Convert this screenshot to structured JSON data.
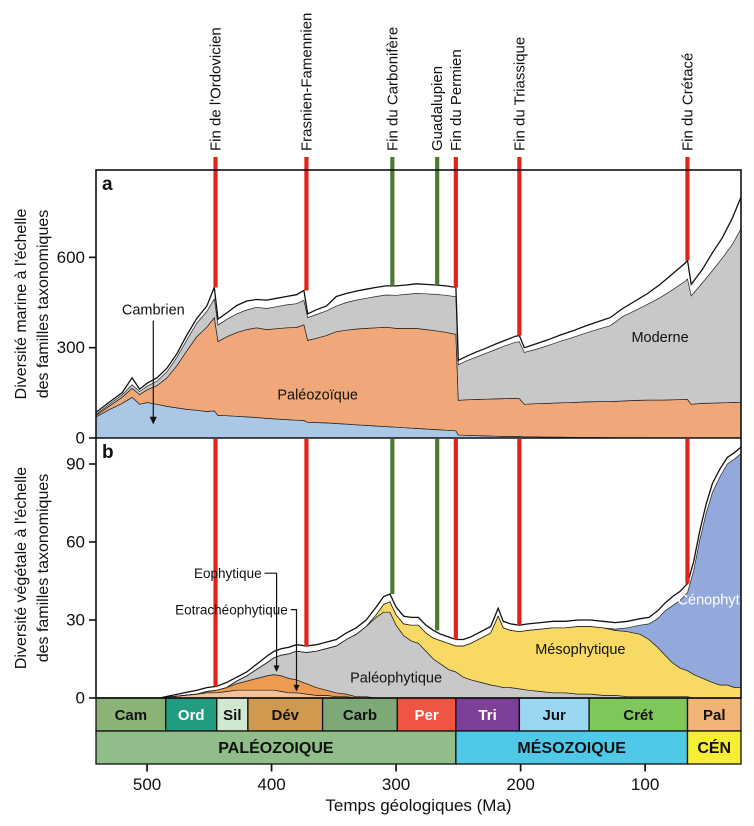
{
  "figure": {
    "xlabel": "Temps géologiques (Ma)",
    "panel_a_letter": "a",
    "panel_b_letter": "b",
    "ylabel_a_line1": "Diversité marine à l'échelle",
    "ylabel_a_line2": "des familles taxonomiques",
    "ylabel_b_line1": "Diversité végétale à l'échelle",
    "ylabel_b_line2": "des familles taxonomiques"
  },
  "events": [
    {
      "label": "Fin de l'Ordovicien",
      "ma": 445,
      "color": "#e3231a"
    },
    {
      "label": "Frasnien-Famennien",
      "ma": 372,
      "color": "#e3231a"
    },
    {
      "label": "Fin du Carbonifère",
      "ma": 303,
      "color": "#4e7a2e"
    },
    {
      "label": "Guadalupien",
      "ma": 267,
      "color": "#4e7a2e"
    },
    {
      "label": "Fin du Permien",
      "ma": 252,
      "color": "#e3231a"
    },
    {
      "label": "Fin du Triassique",
      "ma": 201,
      "color": "#e3231a"
    },
    {
      "label": "Fin du Crétacé",
      "ma": 66,
      "color": "#e3231a"
    }
  ],
  "chart_data": [
    {
      "id": "marine-diversity",
      "type": "area",
      "panel": "a",
      "y_ticks": [
        0,
        300,
        600
      ],
      "y_max": 890,
      "x_ma": [
        541,
        530,
        520,
        512,
        506,
        500,
        492,
        484,
        476,
        468,
        460,
        452,
        446,
        443,
        436,
        428,
        420,
        412,
        404,
        396,
        388,
        380,
        374,
        371,
        364,
        356,
        348,
        340,
        332,
        324,
        316,
        308,
        300,
        292,
        284,
        276,
        268,
        260,
        252,
        250,
        244,
        236,
        228,
        220,
        212,
        204,
        201,
        197,
        188,
        178,
        168,
        158,
        148,
        138,
        128,
        118,
        108,
        98,
        88,
        78,
        68,
        66,
        63,
        54,
        46,
        38,
        30,
        23
      ],
      "series": [
        {
          "name": "Cambrien",
          "color": "#aac7e6",
          "values": [
            70,
            95,
            115,
            135,
            112,
            118,
            112,
            105,
            100,
            95,
            92,
            88,
            90,
            75,
            74,
            72,
            70,
            68,
            65,
            63,
            61,
            59,
            58,
            52,
            51,
            50,
            48,
            46,
            44,
            42,
            40,
            38,
            36,
            34,
            32,
            30,
            28,
            26,
            24,
            10,
            9,
            8,
            7,
            6,
            5,
            5,
            5,
            4,
            4,
            3,
            3,
            2,
            2,
            2,
            1,
            1,
            1,
            1,
            0,
            0,
            0,
            0,
            0,
            0,
            0,
            0,
            0,
            0
          ]
        },
        {
          "name": "Paléozoïque",
          "color": "#f0a87a",
          "values": [
            5,
            12,
            20,
            30,
            32,
            42,
            62,
            95,
            140,
            195,
            245,
            280,
            310,
            245,
            262,
            278,
            290,
            298,
            295,
            300,
            305,
            308,
            318,
            272,
            280,
            290,
            305,
            312,
            318,
            322,
            326,
            330,
            328,
            330,
            332,
            330,
            328,
            325,
            320,
            115,
            118,
            120,
            122,
            124,
            126,
            127,
            126,
            108,
            110,
            112,
            114,
            116,
            118,
            119,
            120,
            122,
            124,
            125,
            126,
            127,
            128,
            128,
            112,
            115,
            116,
            117,
            118,
            119
          ]
        },
        {
          "name": "Moderne",
          "color": "#c8c8c8",
          "values": [
            3,
            6,
            8,
            12,
            10,
            12,
            15,
            20,
            28,
            36,
            45,
            52,
            62,
            55,
            58,
            62,
            65,
            68,
            70,
            73,
            76,
            79,
            81,
            76,
            79,
            82,
            85,
            92,
            96,
            100,
            104,
            107,
            110,
            113,
            116,
            119,
            121,
            123,
            125,
            118,
            128,
            140,
            152,
            164,
            176,
            186,
            188,
            172,
            180,
            192,
            204,
            216,
            228,
            240,
            252,
            280,
            298,
            318,
            340,
            365,
            392,
            400,
            360,
            400,
            440,
            480,
            525,
            575
          ]
        }
      ],
      "total": [
        85,
        120,
        150,
        200,
        162,
        182,
        200,
        232,
        280,
        342,
        398,
        438,
        500,
        395,
        415,
        440,
        455,
        460,
        458,
        464,
        470,
        476,
        490,
        412,
        426,
        438,
        470,
        480,
        488,
        494,
        500,
        505,
        505,
        508,
        512,
        510,
        508,
        505,
        500,
        258,
        270,
        285,
        298,
        312,
        325,
        338,
        340,
        300,
        312,
        326,
        342,
        356,
        372,
        386,
        400,
        430,
        455,
        480,
        510,
        545,
        580,
        590,
        510,
        560,
        615,
        665,
        730,
        800
      ],
      "labels": [
        {
          "text": "Cambrien",
          "ma": 495,
          "value": 410,
          "color": "#111111",
          "arrow_to": 45
        },
        {
          "text": "Paléozoïque",
          "ma": 363,
          "value": 128,
          "color": "#111111"
        },
        {
          "text": "Moderne",
          "ma": 88,
          "value": 318,
          "color": "#111111"
        }
      ]
    },
    {
      "id": "plant-diversity",
      "type": "area",
      "panel": "b",
      "y_ticks": [
        0,
        30,
        60,
        90
      ],
      "y_max": 100,
      "x_ma": [
        541,
        490,
        470,
        460,
        452,
        444,
        436,
        428,
        420,
        412,
        404,
        398,
        392,
        386,
        380,
        372,
        364,
        356,
        348,
        340,
        332,
        324,
        316,
        310,
        305,
        300,
        294,
        288,
        282,
        276,
        270,
        264,
        258,
        252,
        246,
        240,
        232,
        224,
        218,
        214,
        208,
        201,
        194,
        184,
        174,
        164,
        154,
        144,
        134,
        124,
        114,
        104,
        97,
        90,
        84,
        78,
        72,
        66,
        61,
        56,
        51,
        46,
        40,
        34,
        28,
        23
      ],
      "series": [
        {
          "name": "Eotrachéophytique",
          "color": "#f2c39b",
          "values": [
            0,
            0,
            1,
            1.5,
            2,
            2,
            2.5,
            3,
            3,
            3,
            3,
            3,
            2.5,
            2,
            2,
            1.5,
            1,
            1,
            0.5,
            0.5,
            0,
            0,
            0,
            0,
            0,
            0,
            0,
            0,
            0,
            0,
            0,
            0,
            0,
            0,
            0,
            0,
            0,
            0,
            0,
            0,
            0,
            0,
            0,
            0,
            0,
            0,
            0,
            0,
            0,
            0,
            0,
            0,
            0,
            0,
            0,
            0,
            0,
            0,
            0,
            0,
            0,
            0,
            0,
            0,
            0,
            0
          ]
        },
        {
          "name": "Eophytique",
          "color": "#ee9b52",
          "values": [
            0,
            0,
            0,
            0,
            0.5,
            1,
            1.5,
            2.5,
            3.5,
            4.5,
            5.5,
            6,
            6,
            5.5,
            5,
            4,
            3,
            2,
            1.5,
            1,
            0.5,
            0.5,
            0,
            0,
            0,
            0,
            0,
            0,
            0,
            0,
            0,
            0,
            0,
            0,
            0,
            0,
            0,
            0,
            0,
            0,
            0,
            0,
            0,
            0,
            0,
            0,
            0,
            0,
            0,
            0,
            0,
            0,
            0,
            0,
            0,
            0,
            0,
            0,
            0,
            0,
            0,
            0,
            0,
            0,
            0,
            0
          ]
        },
        {
          "name": "Paléophytique",
          "color": "#c8c8c8",
          "values": [
            0,
            0,
            0,
            0,
            0,
            0,
            0,
            1,
            2,
            3.5,
            5,
            6.5,
            8,
            9.5,
            11,
            12,
            14,
            16,
            18,
            21,
            24,
            27,
            31,
            33,
            33,
            28,
            24,
            22,
            21,
            18,
            15,
            13,
            11,
            10,
            8,
            7,
            6,
            5,
            4.5,
            4,
            4,
            3.5,
            3,
            2.5,
            2,
            2,
            1.5,
            1.5,
            1,
            1,
            0.5,
            0.5,
            0.5,
            0.5,
            0.5,
            0.5,
            0.5,
            0.5,
            0,
            0,
            0,
            0,
            0,
            0,
            0,
            0
          ]
        },
        {
          "name": "Mésophytique",
          "color": "#f8d964",
          "values": [
            0,
            0,
            0,
            0,
            0,
            0,
            0,
            0,
            0,
            0,
            0,
            0,
            0,
            0,
            0,
            0,
            0,
            0,
            0,
            0,
            0,
            0,
            1,
            3,
            4,
            4,
            4.5,
            6,
            7,
            7,
            8,
            9,
            10,
            10,
            12,
            14,
            17,
            20,
            27,
            23,
            22,
            22,
            23,
            24,
            25,
            25,
            26,
            26,
            26,
            25,
            25,
            24,
            22,
            19,
            16,
            13,
            11,
            10,
            9,
            8,
            7,
            6,
            5,
            5,
            4,
            4
          ]
        },
        {
          "name": "Cénophytique",
          "color": "#93a9dc",
          "values": [
            0,
            0,
            0,
            0,
            0,
            0,
            0,
            0,
            0,
            0,
            0,
            0,
            0,
            0,
            0,
            0,
            0,
            0,
            0,
            0,
            0,
            0,
            0,
            0,
            0,
            0,
            0,
            0,
            0,
            0,
            0,
            0,
            0,
            0,
            0,
            0,
            0,
            0,
            0,
            0,
            0,
            0,
            0,
            0,
            0,
            0,
            0,
            0,
            0,
            0.5,
            1.5,
            3.5,
            6,
            11,
            17,
            22,
            26,
            30,
            40,
            53,
            64,
            73,
            80,
            85,
            88,
            90
          ]
        }
      ],
      "total": [
        0,
        0,
        2,
        3,
        4,
        4.5,
        6,
        8,
        10,
        13,
        16,
        18,
        19,
        19.5,
        20.5,
        20,
        20.5,
        21.5,
        22.5,
        25,
        27,
        30,
        35,
        39,
        40,
        35,
        31.5,
        31,
        31,
        28,
        26,
        24.5,
        23.5,
        22.5,
        22.5,
        23.5,
        25.5,
        27.5,
        34.5,
        29.5,
        28.5,
        28,
        28.5,
        29,
        29.5,
        29.5,
        30,
        30,
        29.5,
        29,
        29.5,
        30.5,
        31,
        33.5,
        36.5,
        39,
        41,
        44,
        52.5,
        64.5,
        74.5,
        82.5,
        88,
        92.5,
        94.5,
        96.5
      ],
      "labels": [
        {
          "text": "Paléophytique",
          "ma": 300,
          "value": 6,
          "color": "#111111"
        },
        {
          "text": "Mésophytique",
          "ma": 152,
          "value": 17,
          "color": "#111111"
        },
        {
          "text": "Cénophytique",
          "ma": 38,
          "value": 36,
          "color": "#ffffff"
        }
      ],
      "leader_labels": [
        {
          "text": "Eophytique",
          "ma_text_end": 408,
          "value_text": 48,
          "ma_target": 396,
          "value_target": 10
        },
        {
          "text": "Eotrachéophytique",
          "ma_text_end": 387,
          "value_text": 34,
          "ma_target": 380,
          "value_target": 2.5
        }
      ]
    }
  ],
  "timescale": {
    "x_domain_ma": [
      541,
      23
    ],
    "x_ticks": [
      500,
      400,
      300,
      200,
      100
    ],
    "periods": [
      {
        "name": "Cam",
        "from": 541,
        "to": 485,
        "bg": "#8cb377",
        "fg": "#111111"
      },
      {
        "name": "Ord",
        "from": 485,
        "to": 444,
        "bg": "#229c80",
        "fg": "#ffffff"
      },
      {
        "name": "Sil",
        "from": 444,
        "to": 419,
        "bg": "#cfe8cf",
        "fg": "#111111"
      },
      {
        "name": "Dév",
        "from": 419,
        "to": 359,
        "bg": "#cf9a50",
        "fg": "#111111"
      },
      {
        "name": "Carb",
        "from": 359,
        "to": 299,
        "bg": "#7da877",
        "fg": "#111111"
      },
      {
        "name": "Per",
        "from": 299,
        "to": 252,
        "bg": "#ee5543",
        "fg": "#ffffff"
      },
      {
        "name": "Tri",
        "from": 252,
        "to": 201,
        "bg": "#7d3f98",
        "fg": "#ffffff"
      },
      {
        "name": "Jur",
        "from": 201,
        "to": 145,
        "bg": "#9bd7f1",
        "fg": "#111111"
      },
      {
        "name": "Crét",
        "from": 145,
        "to": 66,
        "bg": "#80c75a",
        "fg": "#111111"
      },
      {
        "name": "Pal",
        "from": 66,
        "to": 23,
        "bg": "#f2b377",
        "fg": "#111111"
      }
    ],
    "eras": [
      {
        "name": "PALÉOZOIQUE",
        "from": 541,
        "to": 252,
        "bg": "#90bd89",
        "fg": "#111111"
      },
      {
        "name": "MÉSOZOIQUE",
        "from": 252,
        "to": 66,
        "bg": "#50c8e8",
        "fg": "#111111"
      },
      {
        "name": "CÉN",
        "from": 66,
        "to": 23,
        "bg": "#f5ee35",
        "fg": "#111111"
      }
    ]
  }
}
